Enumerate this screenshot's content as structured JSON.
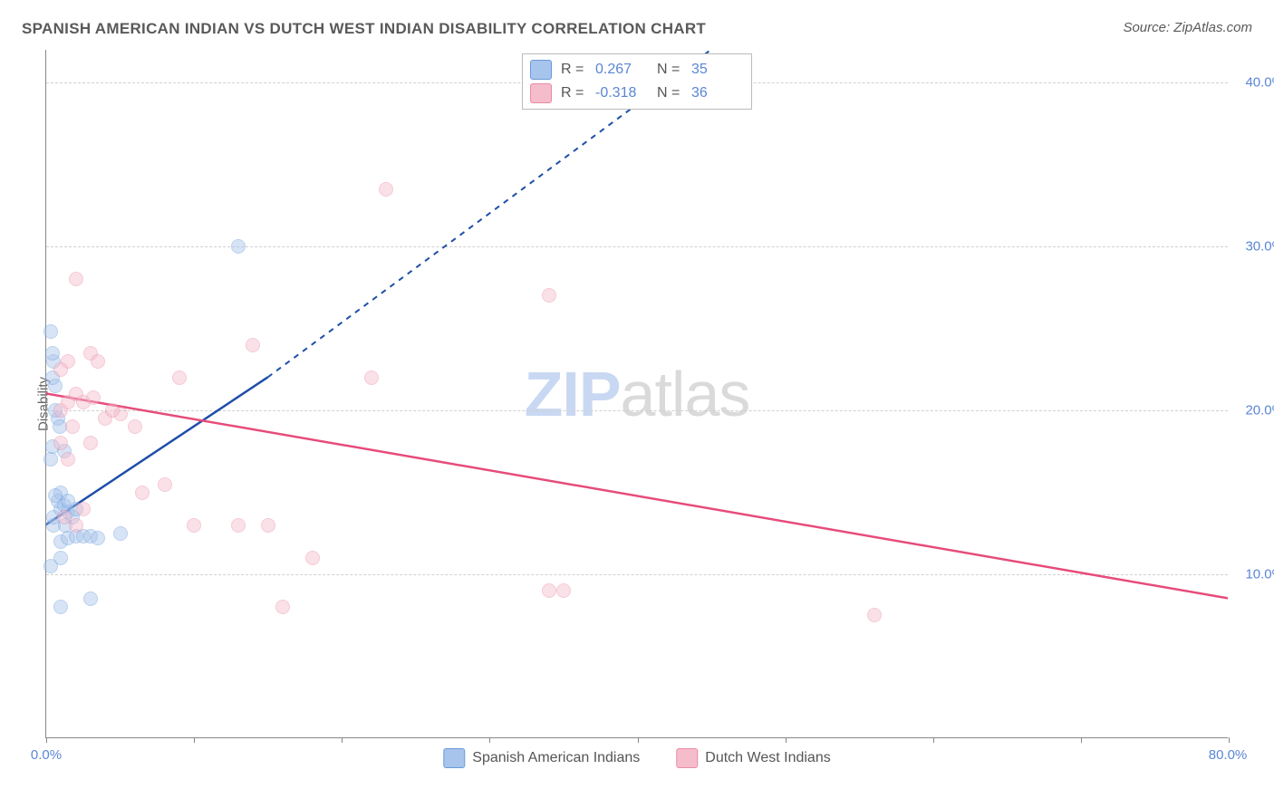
{
  "title": "SPANISH AMERICAN INDIAN VS DUTCH WEST INDIAN DISABILITY CORRELATION CHART",
  "source": "Source: ZipAtlas.com",
  "watermark_zip": "ZIP",
  "watermark_atlas": "atlas",
  "y_axis_label": "Disability",
  "chart": {
    "type": "scatter",
    "background_color": "#ffffff",
    "grid_color": "#d0d0d0",
    "axis_color": "#888888",
    "xlim": [
      0,
      80
    ],
    "ylim": [
      0,
      42
    ],
    "ytick_values": [
      10,
      20,
      30,
      40
    ],
    "ytick_labels": [
      "10.0%",
      "20.0%",
      "30.0%",
      "40.0%"
    ],
    "xtick_values": [
      0,
      10,
      20,
      30,
      40,
      50,
      60,
      70,
      80
    ],
    "xtick_label_min": "0.0%",
    "xtick_label_max": "80.0%",
    "point_radius": 8,
    "point_opacity": 0.45,
    "trend_line_width": 2.5,
    "series": [
      {
        "name": "Spanish American Indians",
        "fill_color": "#a7c4ec",
        "stroke_color": "#6a9ad8",
        "line_color": "#1f4fa8",
        "r_value": "0.267",
        "n_value": "35",
        "trend_solid": {
          "x1": 0,
          "y1": 13,
          "x2": 15,
          "y2": 22
        },
        "trend_dashed": {
          "x1": 15,
          "y1": 22,
          "x2": 45,
          "y2": 42
        },
        "points": [
          [
            0.5,
            13
          ],
          [
            0.5,
            13.5
          ],
          [
            1,
            14
          ],
          [
            0.8,
            14.5
          ],
          [
            1.2,
            14.2
          ],
          [
            1.5,
            13.8
          ],
          [
            0.3,
            17
          ],
          [
            0.4,
            17.8
          ],
          [
            0.6,
            21.5
          ],
          [
            0.5,
            23
          ],
          [
            0.4,
            23.5
          ],
          [
            0.3,
            24.8
          ],
          [
            1,
            12
          ],
          [
            1.5,
            12.2
          ],
          [
            2,
            12.3
          ],
          [
            2.5,
            12.3
          ],
          [
            3,
            12.3
          ],
          [
            3.5,
            12.2
          ],
          [
            1,
            11
          ],
          [
            1,
            8
          ],
          [
            3,
            8.5
          ],
          [
            0.3,
            10.5
          ],
          [
            13,
            30
          ],
          [
            5,
            12.5
          ],
          [
            1.8,
            13.5
          ],
          [
            0.8,
            19.5
          ],
          [
            1,
            15
          ],
          [
            0.6,
            20
          ],
          [
            0.4,
            22
          ],
          [
            1.2,
            17.5
          ],
          [
            2,
            14
          ],
          [
            1.3,
            13
          ],
          [
            0.6,
            14.8
          ],
          [
            0.9,
            19
          ],
          [
            1.5,
            14.5
          ]
        ]
      },
      {
        "name": "Dutch West Indians",
        "fill_color": "#f5bccc",
        "stroke_color": "#e98ba7",
        "line_color": "#e74b7a",
        "r_value": "-0.318",
        "n_value": "36",
        "trend_solid": {
          "x1": 0,
          "y1": 21,
          "x2": 80,
          "y2": 8.5
        },
        "points": [
          [
            1,
            20
          ],
          [
            1.5,
            20.5
          ],
          [
            2,
            21
          ],
          [
            2.5,
            20.5
          ],
          [
            3,
            23.5
          ],
          [
            1.5,
            23
          ],
          [
            3.5,
            23
          ],
          [
            4,
            19.5
          ],
          [
            5,
            19.8
          ],
          [
            6,
            19
          ],
          [
            9,
            22
          ],
          [
            14,
            24
          ],
          [
            2,
            28
          ],
          [
            8,
            15.5
          ],
          [
            10,
            13
          ],
          [
            13,
            13
          ],
          [
            15,
            13
          ],
          [
            18,
            11
          ],
          [
            22,
            22
          ],
          [
            23,
            33.5
          ],
          [
            6.5,
            15
          ],
          [
            16,
            8
          ],
          [
            34,
            9
          ],
          [
            34,
            27
          ],
          [
            56,
            7.5
          ],
          [
            35,
            9
          ],
          [
            3,
            18
          ],
          [
            1,
            22.5
          ],
          [
            2,
            13
          ],
          [
            1.2,
            13.5
          ],
          [
            2.5,
            14
          ],
          [
            4.5,
            20
          ],
          [
            1.8,
            19
          ],
          [
            1,
            18
          ],
          [
            1.5,
            17
          ],
          [
            3.2,
            20.8
          ]
        ]
      }
    ]
  }
}
